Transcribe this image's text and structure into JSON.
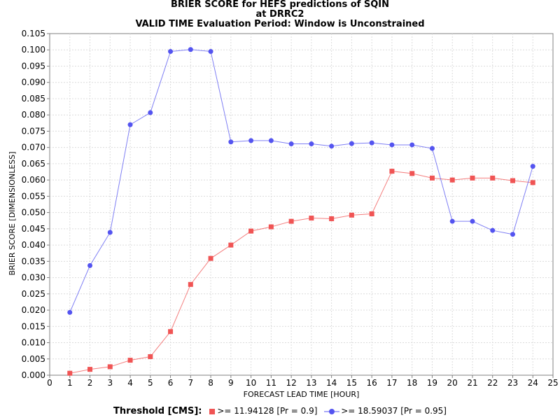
{
  "chart_data": {
    "type": "line",
    "title": [
      "BRIER SCORE for HEFS predictions of SQIN",
      "at DRRC2",
      "VALID TIME Evaluation Period: Window is Unconstrained"
    ],
    "xlabel": "FORECAST LEAD TIME [HOUR]",
    "ylabel": "BRIER SCORE [DIMENSIONLESS]",
    "xlim": [
      0,
      25
    ],
    "ylim": [
      0,
      0.105
    ],
    "x_ticks": [
      "0",
      "1",
      "2",
      "3",
      "4",
      "5",
      "6",
      "7",
      "8",
      "9",
      "10",
      "11",
      "12",
      "13",
      "14",
      "15",
      "16",
      "17",
      "18",
      "19",
      "20",
      "21",
      "22",
      "23",
      "24",
      "25"
    ],
    "y_ticks": [
      "0.000",
      "0.005",
      "0.010",
      "0.015",
      "0.020",
      "0.025",
      "0.030",
      "0.035",
      "0.040",
      "0.045",
      "0.050",
      "0.055",
      "0.060",
      "0.065",
      "0.070",
      "0.075",
      "0.080",
      "0.085",
      "0.090",
      "0.095",
      "0.100",
      "0.105"
    ],
    "grid": true,
    "legend_position": "bottom",
    "legend_title": "Threshold [CMS]:",
    "x": [
      1,
      2,
      3,
      4,
      5,
      6,
      7,
      8,
      9,
      10,
      11,
      12,
      13,
      14,
      15,
      16,
      17,
      18,
      19,
      20,
      21,
      22,
      23,
      24
    ],
    "series": [
      {
        "name": ">= 11.94128 [Pr = 0.9]",
        "color": "#f05454",
        "marker": "square",
        "values": [
          0.0006,
          0.0018,
          0.0026,
          0.0046,
          0.0057,
          0.0134,
          0.0279,
          0.0359,
          0.04,
          0.0443,
          0.0456,
          0.0473,
          0.0483,
          0.0481,
          0.0492,
          0.0496,
          0.0627,
          0.062,
          0.0606,
          0.06,
          0.0606,
          0.0606,
          0.0598,
          0.0592
        ]
      },
      {
        "name": ">= 18.59037 [Pr = 0.95]",
        "color": "#5454f0",
        "marker": "circle",
        "values": [
          0.0193,
          0.0337,
          0.0439,
          0.077,
          0.0807,
          0.0995,
          0.1001,
          0.0995,
          0.0717,
          0.0721,
          0.0721,
          0.0711,
          0.0711,
          0.0704,
          0.0712,
          0.0714,
          0.0708,
          0.0708,
          0.0697,
          0.0473,
          0.0473,
          0.0445,
          0.0433,
          0.0642
        ]
      }
    ]
  }
}
